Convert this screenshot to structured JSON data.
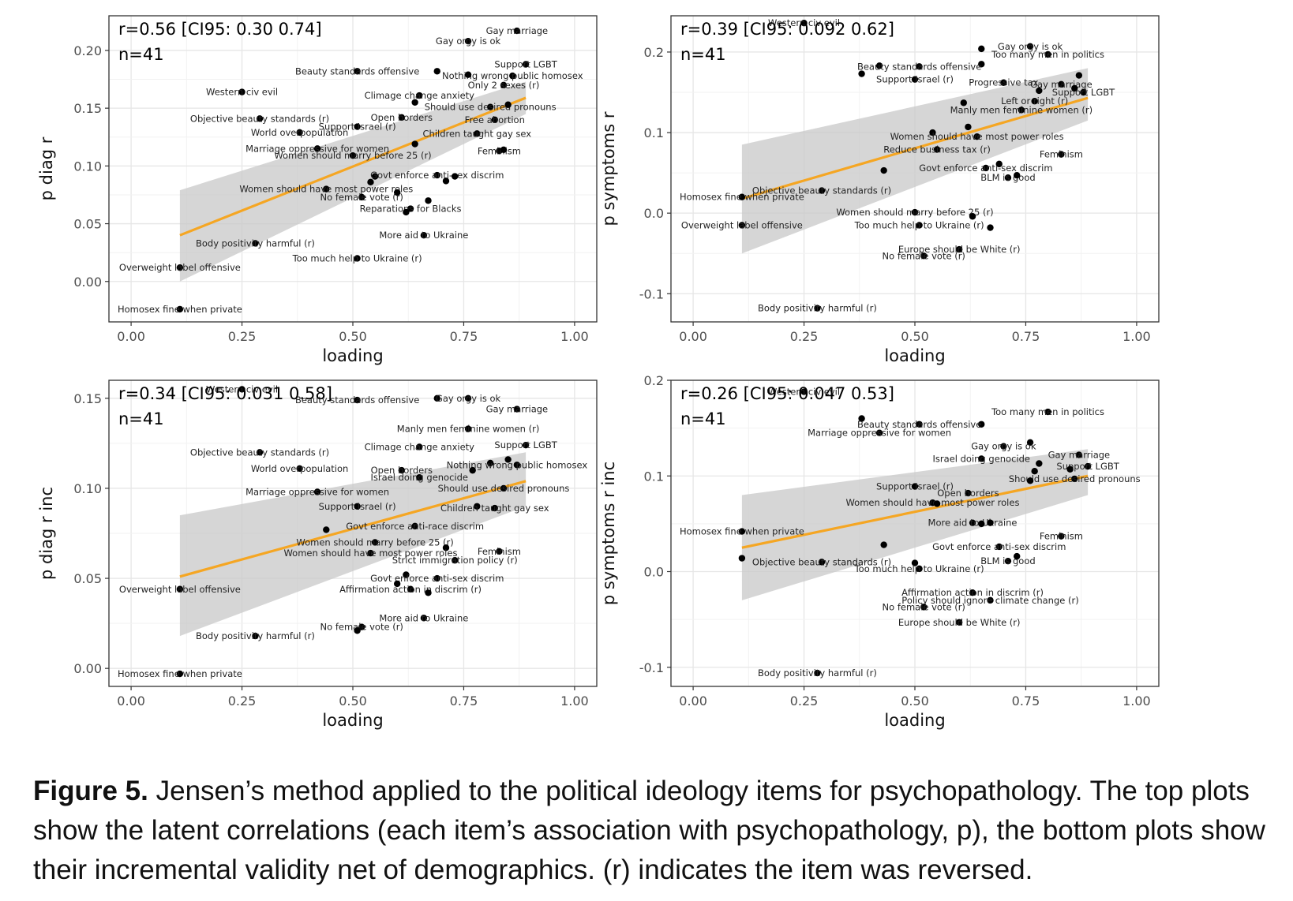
{
  "caption": {
    "label": "Figure 5.",
    "text": "Jensen’s method applied to the political ideology items for psychopathology. The top plots show the latent correlations (each item’s association with psychopathology, p), the bottom plots show their incremental validity net of demographics. (r) indicates the item was reversed."
  },
  "chart_data": [
    {
      "type": "scatter",
      "annotation": [
        "r=0.56 [CI95: 0.30 0.74]",
        "n=41"
      ],
      "xlabel": "loading",
      "ylabel": "p diag r",
      "xlim": [
        -0.05,
        1.05
      ],
      "ylim": [
        -0.035,
        0.23
      ],
      "xticks": [
        "0.00",
        "0.25",
        "0.50",
        "0.75",
        "1.00"
      ],
      "yticks": [
        "0.00",
        "0.05",
        "0.10",
        "0.15",
        "0.20"
      ],
      "fit": {
        "x": [
          0.11,
          0.89
        ],
        "y": [
          0.04,
          0.159
        ],
        "band_low": [
          0.0,
          0.145
        ],
        "band_high": [
          0.079,
          0.173
        ],
        "color": "#f5a623"
      },
      "points": [
        {
          "x": 0.87,
          "y": 0.217,
          "label": "Gay marriage"
        },
        {
          "x": 0.76,
          "y": 0.208,
          "label": "Gay orgy is ok"
        },
        {
          "x": 0.89,
          "y": 0.188,
          "label": "Support LGBT"
        },
        {
          "x": 0.86,
          "y": 0.178,
          "label": "Nothing wrong public homosex"
        },
        {
          "x": 0.69,
          "y": 0.182,
          "label": ""
        },
        {
          "x": 0.76,
          "y": 0.179,
          "label": ""
        },
        {
          "x": 0.51,
          "y": 0.182,
          "label": "Beauty standards offensive"
        },
        {
          "x": 0.84,
          "y": 0.17,
          "label": "Only 2 sexes (r)"
        },
        {
          "x": 0.25,
          "y": 0.164,
          "label": "Western civ evil"
        },
        {
          "x": 0.65,
          "y": 0.161,
          "label": "Climage change anxiety"
        },
        {
          "x": 0.64,
          "y": 0.155,
          "label": ""
        },
        {
          "x": 0.81,
          "y": 0.151,
          "label": "Should use desired pronouns"
        },
        {
          "x": 0.85,
          "y": 0.153,
          "label": ""
        },
        {
          "x": 0.29,
          "y": 0.141,
          "label": "Objective beauty standards (r)"
        },
        {
          "x": 0.61,
          "y": 0.142,
          "label": "Open borders"
        },
        {
          "x": 0.82,
          "y": 0.14,
          "label": "Free abortion"
        },
        {
          "x": 0.51,
          "y": 0.134,
          "label": "Support Israel (r)"
        },
        {
          "x": 0.38,
          "y": 0.129,
          "label": "World overpopulation"
        },
        {
          "x": 0.78,
          "y": 0.128,
          "label": "Children taught gay sex"
        },
        {
          "x": 0.64,
          "y": 0.119,
          "label": ""
        },
        {
          "x": 0.42,
          "y": 0.115,
          "label": "Marriage oppressive for women"
        },
        {
          "x": 0.83,
          "y": 0.113,
          "label": "Feminism"
        },
        {
          "x": 0.84,
          "y": 0.114,
          "label": ""
        },
        {
          "x": 0.5,
          "y": 0.109,
          "label": "Women should marry before 25 (r)"
        },
        {
          "x": 0.55,
          "y": 0.091,
          "label": ""
        },
        {
          "x": 0.69,
          "y": 0.092,
          "label": "Govt enforce anti-sex discrim"
        },
        {
          "x": 0.71,
          "y": 0.087,
          "label": ""
        },
        {
          "x": 0.73,
          "y": 0.091,
          "label": ""
        },
        {
          "x": 0.54,
          "y": 0.086,
          "label": ""
        },
        {
          "x": 0.44,
          "y": 0.08,
          "label": "Women should have most power roles"
        },
        {
          "x": 0.6,
          "y": 0.077,
          "label": ""
        },
        {
          "x": 0.52,
          "y": 0.073,
          "label": "No female vote (r)"
        },
        {
          "x": 0.67,
          "y": 0.07,
          "label": ""
        },
        {
          "x": 0.63,
          "y": 0.063,
          "label": "Reparations for Blacks"
        },
        {
          "x": 0.62,
          "y": 0.06,
          "label": ""
        },
        {
          "x": 0.66,
          "y": 0.04,
          "label": "More aid to Ukraine"
        },
        {
          "x": 0.28,
          "y": 0.033,
          "label": "Body positivity harmful (r)"
        },
        {
          "x": 0.51,
          "y": 0.02,
          "label": "Too much help to Ukraine (r)"
        },
        {
          "x": 0.11,
          "y": 0.012,
          "label": "Overweight label offensive"
        },
        {
          "x": 0.11,
          "y": -0.024,
          "label": "Homosex fine when private"
        }
      ]
    },
    {
      "type": "scatter",
      "annotation": [
        "r=0.39 [CI95: 0.092 0.62]",
        "n=41"
      ],
      "xlabel": "loading",
      "ylabel": "p symptoms r",
      "xlim": [
        -0.05,
        1.05
      ],
      "ylim": [
        -0.135,
        0.245
      ],
      "xticks": [
        "0.00",
        "0.25",
        "0.50",
        "0.75",
        "1.00"
      ],
      "yticks": [
        "-0.1",
        "0.0",
        "0.1",
        "0.2"
      ],
      "fit": {
        "x": [
          0.11,
          0.89
        ],
        "y": [
          0.018,
          0.143
        ],
        "band_low": [
          -0.05,
          0.115
        ],
        "band_high": [
          0.085,
          0.18
        ],
        "color": "#f5a623"
      },
      "points": [
        {
          "x": 0.25,
          "y": 0.236,
          "label": "Western civ evil"
        },
        {
          "x": 0.76,
          "y": 0.207,
          "label": "Gay orgy is ok"
        },
        {
          "x": 0.65,
          "y": 0.204,
          "label": ""
        },
        {
          "x": 0.8,
          "y": 0.197,
          "label": "Too many men in politics"
        },
        {
          "x": 0.65,
          "y": 0.185,
          "label": ""
        },
        {
          "x": 0.42,
          "y": 0.183,
          "label": ""
        },
        {
          "x": 0.51,
          "y": 0.182,
          "label": "Beauty standards offensive"
        },
        {
          "x": 0.38,
          "y": 0.173,
          "label": ""
        },
        {
          "x": 0.5,
          "y": 0.166,
          "label": "Support Israel (r)"
        },
        {
          "x": 0.87,
          "y": 0.171,
          "label": ""
        },
        {
          "x": 0.7,
          "y": 0.162,
          "label": "Progressive tax"
        },
        {
          "x": 0.83,
          "y": 0.16,
          "label": "Gay marriage"
        },
        {
          "x": 0.78,
          "y": 0.152,
          "label": ""
        },
        {
          "x": 0.88,
          "y": 0.15,
          "label": "Support LGBT"
        },
        {
          "x": 0.86,
          "y": 0.155,
          "label": ""
        },
        {
          "x": 0.77,
          "y": 0.139,
          "label": "Left or right (r)"
        },
        {
          "x": 0.61,
          "y": 0.137,
          "label": ""
        },
        {
          "x": 0.74,
          "y": 0.128,
          "label": "Manly men feminine women (r)"
        },
        {
          "x": 0.62,
          "y": 0.107,
          "label": ""
        },
        {
          "x": 0.54,
          "y": 0.1,
          "label": ""
        },
        {
          "x": 0.64,
          "y": 0.095,
          "label": "Women should have most power roles"
        },
        {
          "x": 0.55,
          "y": 0.079,
          "label": "Reduce business tax (r)"
        },
        {
          "x": 0.83,
          "y": 0.073,
          "label": "Feminism"
        },
        {
          "x": 0.66,
          "y": 0.056,
          "label": "Govt enforce anti-sex discrim"
        },
        {
          "x": 0.69,
          "y": 0.061,
          "label": ""
        },
        {
          "x": 0.43,
          "y": 0.053,
          "label": ""
        },
        {
          "x": 0.71,
          "y": 0.044,
          "label": "BLM is good"
        },
        {
          "x": 0.73,
          "y": 0.047,
          "label": ""
        },
        {
          "x": 0.29,
          "y": 0.028,
          "label": "Objective beauty standards (r)"
        },
        {
          "x": 0.11,
          "y": 0.02,
          "label": "Homosex fine when private"
        },
        {
          "x": 0.5,
          "y": 0.001,
          "label": "Women should marry before 25 (r)"
        },
        {
          "x": 0.63,
          "y": -0.004,
          "label": ""
        },
        {
          "x": 0.51,
          "y": -0.015,
          "label": "Too much help to Ukraine (r)"
        },
        {
          "x": 0.67,
          "y": -0.018,
          "label": ""
        },
        {
          "x": 0.11,
          "y": -0.015,
          "label": "Overweight label offensive"
        },
        {
          "x": 0.6,
          "y": -0.045,
          "label": "Europe should be White (r)"
        },
        {
          "x": 0.52,
          "y": -0.053,
          "label": "No female vote (r)"
        },
        {
          "x": 0.28,
          "y": -0.118,
          "label": "Body positivity harmful (r)"
        }
      ]
    },
    {
      "type": "scatter",
      "annotation": [
        "r=0.34 [CI95: 0.031 0.58]",
        "n=41"
      ],
      "xlabel": "loading",
      "ylabel": "p diag r inc",
      "xlim": [
        -0.05,
        1.05
      ],
      "ylim": [
        -0.01,
        0.16
      ],
      "xticks": [
        "0.00",
        "0.25",
        "0.50",
        "0.75",
        "1.00"
      ],
      "yticks": [
        "0.00",
        "0.05",
        "0.10",
        "0.15"
      ],
      "fit": {
        "x": [
          0.11,
          0.89
        ],
        "y": [
          0.051,
          0.104
        ],
        "band_low": [
          0.018,
          0.09
        ],
        "band_high": [
          0.085,
          0.12
        ],
        "color": "#f5a623"
      },
      "points": [
        {
          "x": 0.25,
          "y": 0.155,
          "label": "Western civ evil"
        },
        {
          "x": 0.69,
          "y": 0.15,
          "label": ""
        },
        {
          "x": 0.76,
          "y": 0.15,
          "label": "Gay orgy is ok"
        },
        {
          "x": 0.51,
          "y": 0.149,
          "label": "Beauty standards offensive"
        },
        {
          "x": 0.87,
          "y": 0.144,
          "label": "Gay marriage"
        },
        {
          "x": 0.76,
          "y": 0.133,
          "label": "Manly men feminine women (r)"
        },
        {
          "x": 0.89,
          "y": 0.124,
          "label": "Support LGBT"
        },
        {
          "x": 0.65,
          "y": 0.123,
          "label": "Climage change anxiety"
        },
        {
          "x": 0.29,
          "y": 0.12,
          "label": "Objective beauty standards (r)"
        },
        {
          "x": 0.85,
          "y": 0.116,
          "label": ""
        },
        {
          "x": 0.81,
          "y": 0.114,
          "label": ""
        },
        {
          "x": 0.87,
          "y": 0.113,
          "label": "Nothing wrong public homosex"
        },
        {
          "x": 0.38,
          "y": 0.111,
          "label": "World overpopulation"
        },
        {
          "x": 0.77,
          "y": 0.11,
          "label": ""
        },
        {
          "x": 0.61,
          "y": 0.11,
          "label": "Open borders"
        },
        {
          "x": 0.65,
          "y": 0.106,
          "label": "Israel doing genocide"
        },
        {
          "x": 0.84,
          "y": 0.1,
          "label": "Should use desired pronouns"
        },
        {
          "x": 0.42,
          "y": 0.098,
          "label": "Marriage oppressive for women"
        },
        {
          "x": 0.51,
          "y": 0.09,
          "label": "Support Israel (r)"
        },
        {
          "x": 0.78,
          "y": 0.09,
          "label": ""
        },
        {
          "x": 0.82,
          "y": 0.089,
          "label": "Children taught gay sex"
        },
        {
          "x": 0.64,
          "y": 0.079,
          "label": "Govt enforce anti-race discrim"
        },
        {
          "x": 0.44,
          "y": 0.077,
          "label": ""
        },
        {
          "x": 0.55,
          "y": 0.07,
          "label": "Women should marry before 25 (r)"
        },
        {
          "x": 0.71,
          "y": 0.067,
          "label": ""
        },
        {
          "x": 0.83,
          "y": 0.065,
          "label": "Feminism"
        },
        {
          "x": 0.54,
          "y": 0.064,
          "label": "Women should have most power roles"
        },
        {
          "x": 0.73,
          "y": 0.06,
          "label": "Strict immigration policy (r)"
        },
        {
          "x": 0.62,
          "y": 0.052,
          "label": ""
        },
        {
          "x": 0.69,
          "y": 0.05,
          "label": "Govt enforce anti-sex discrim"
        },
        {
          "x": 0.6,
          "y": 0.047,
          "label": ""
        },
        {
          "x": 0.63,
          "y": 0.044,
          "label": "Affirmation action in discrim (r)"
        },
        {
          "x": 0.67,
          "y": 0.042,
          "label": ""
        },
        {
          "x": 0.11,
          "y": 0.044,
          "label": "Overweight label offensive"
        },
        {
          "x": 0.66,
          "y": 0.028,
          "label": "More aid to Ukraine"
        },
        {
          "x": 0.52,
          "y": 0.023,
          "label": "No female vote (r)"
        },
        {
          "x": 0.51,
          "y": 0.021,
          "label": ""
        },
        {
          "x": 0.28,
          "y": 0.018,
          "label": "Body positivity harmful (r)"
        },
        {
          "x": 0.11,
          "y": -0.003,
          "label": "Homosex fine when private"
        }
      ]
    },
    {
      "type": "scatter",
      "annotation": [
        "r=0.26 [CI95: 0.047 0.53]",
        "n=41"
      ],
      "xlabel": "loading",
      "ylabel": "p symptoms r inc",
      "xlim": [
        -0.05,
        1.05
      ],
      "ylim": [
        -0.12,
        0.2
      ],
      "xticks": [
        "0.00",
        "0.25",
        "0.50",
        "0.75",
        "1.00"
      ],
      "yticks": [
        "-0.1",
        "0.0",
        "0.1",
        "0.2"
      ],
      "fit": {
        "x": [
          0.11,
          0.89
        ],
        "y": [
          0.025,
          0.1
        ],
        "band_low": [
          -0.03,
          0.08
        ],
        "band_high": [
          0.08,
          0.128
        ],
        "color": "#f5a623"
      },
      "points": [
        {
          "x": 0.25,
          "y": 0.188,
          "label": "Western civ evil"
        },
        {
          "x": 0.8,
          "y": 0.167,
          "label": "Too many men in politics"
        },
        {
          "x": 0.38,
          "y": 0.16,
          "label": ""
        },
        {
          "x": 0.65,
          "y": 0.154,
          "label": ""
        },
        {
          "x": 0.51,
          "y": 0.154,
          "label": "Beauty standards offensive"
        },
        {
          "x": 0.42,
          "y": 0.145,
          "label": "Marriage oppressive for women"
        },
        {
          "x": 0.76,
          "y": 0.135,
          "label": ""
        },
        {
          "x": 0.7,
          "y": 0.131,
          "label": "Gay orgy is ok"
        },
        {
          "x": 0.87,
          "y": 0.122,
          "label": "Gay marriage"
        },
        {
          "x": 0.65,
          "y": 0.118,
          "label": "Israel doing genocide"
        },
        {
          "x": 0.78,
          "y": 0.113,
          "label": ""
        },
        {
          "x": 0.89,
          "y": 0.11,
          "label": "Support LGBT"
        },
        {
          "x": 0.85,
          "y": 0.107,
          "label": ""
        },
        {
          "x": 0.77,
          "y": 0.105,
          "label": ""
        },
        {
          "x": 0.86,
          "y": 0.097,
          "label": "Should use desired pronouns"
        },
        {
          "x": 0.76,
          "y": 0.095,
          "label": ""
        },
        {
          "x": 0.5,
          "y": 0.089,
          "label": "Support Israel (r)"
        },
        {
          "x": 0.62,
          "y": 0.082,
          "label": "Open borders"
        },
        {
          "x": 0.54,
          "y": 0.072,
          "label": "Women should have most power roles"
        },
        {
          "x": 0.55,
          "y": 0.071,
          "label": ""
        },
        {
          "x": 0.63,
          "y": 0.051,
          "label": "More aid to Ukraine"
        },
        {
          "x": 0.65,
          "y": 0.05,
          "label": ""
        },
        {
          "x": 0.67,
          "y": 0.051,
          "label": ""
        },
        {
          "x": 0.11,
          "y": 0.042,
          "label": "Homosex fine when private"
        },
        {
          "x": 0.83,
          "y": 0.037,
          "label": "Feminism"
        },
        {
          "x": 0.43,
          "y": 0.028,
          "label": ""
        },
        {
          "x": 0.69,
          "y": 0.026,
          "label": "Govt enforce anti-sex discrim"
        },
        {
          "x": 0.73,
          "y": 0.016,
          "label": ""
        },
        {
          "x": 0.11,
          "y": 0.014,
          "label": ""
        },
        {
          "x": 0.71,
          "y": 0.011,
          "label": "BLM is good"
        },
        {
          "x": 0.29,
          "y": 0.01,
          "label": "Objective beauty standards (r)"
        },
        {
          "x": 0.5,
          "y": 0.009,
          "label": ""
        },
        {
          "x": 0.51,
          "y": 0.003,
          "label": "Too much help to Ukraine (r)"
        },
        {
          "x": 0.63,
          "y": -0.022,
          "label": "Affirmation action in discrim (r)"
        },
        {
          "x": 0.67,
          "y": -0.03,
          "label": "Policy should ignore climate change (r)"
        },
        {
          "x": 0.52,
          "y": -0.037,
          "label": "No female vote (r)"
        },
        {
          "x": 0.6,
          "y": -0.053,
          "label": "Europe should be White (r)"
        },
        {
          "x": 0.28,
          "y": -0.106,
          "label": "Body positivity harmful (r)"
        }
      ]
    }
  ]
}
